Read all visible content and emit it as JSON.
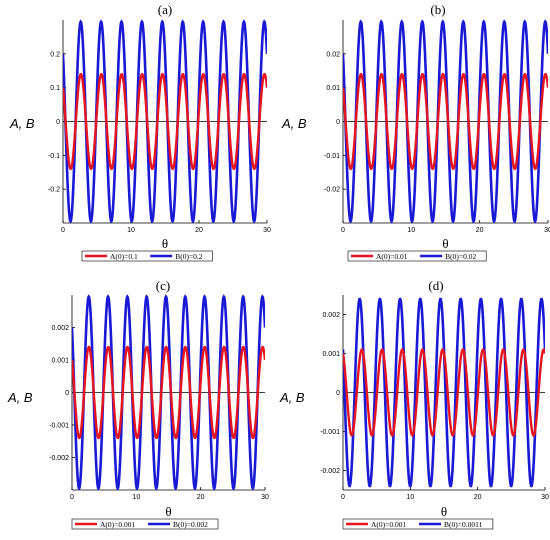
{
  "chart_data": [
    {
      "type": "line",
      "title": "(a)",
      "xlabel": "θ",
      "ylabel": "A, B",
      "xlim": [
        0,
        30
      ],
      "ylim": [
        -0.3,
        0.3
      ],
      "xticks": [
        "0",
        "10",
        "20",
        "30"
      ],
      "yticks": [
        {
          "v": 0.2,
          "t": "0.2"
        },
        {
          "v": 0.1,
          "t": "0.1"
        },
        {
          "v": 0,
          "t": "0"
        },
        {
          "v": -0.1,
          "t": "-0.1"
        },
        {
          "v": -0.2,
          "t": "-0.2"
        }
      ],
      "series": [
        {
          "name": "A(0)=0.1",
          "color": "#e8141e",
          "amplitude": 0.14,
          "initial": 0.1,
          "oscillations": 10
        },
        {
          "name": "B(0)=0.2",
          "color": "#1a1ad6",
          "amplitude": 0.295,
          "initial": 0.2,
          "oscillations": 10
        }
      ]
    },
    {
      "type": "line",
      "title": "(b)",
      "xlabel": "θ",
      "ylabel": "A, B",
      "xlim": [
        0,
        30
      ],
      "ylim": [
        -0.03,
        0.03
      ],
      "xticks": [
        "0",
        "10",
        "20",
        "30"
      ],
      "yticks": [
        {
          "v": 0.02,
          "t": "0.02"
        },
        {
          "v": 0.01,
          "t": "0.01"
        },
        {
          "v": 0,
          "t": "0"
        },
        {
          "v": -0.01,
          "t": "-0.01"
        },
        {
          "v": -0.02,
          "t": "-0.02"
        }
      ],
      "series": [
        {
          "name": "A(0)=0.01",
          "color": "#e8141e",
          "amplitude": 0.014,
          "initial": 0.01,
          "oscillations": 10
        },
        {
          "name": "B(0)=0.02",
          "color": "#1a1ad6",
          "amplitude": 0.0295,
          "initial": 0.02,
          "oscillations": 10
        }
      ]
    },
    {
      "type": "line",
      "title": "(c)",
      "xlabel": "θ",
      "ylabel": "A, B",
      "xlim": [
        0,
        30
      ],
      "ylim": [
        -0.003,
        0.003
      ],
      "xticks": [
        "0",
        "10",
        "20",
        "30"
      ],
      "yticks": [
        {
          "v": 0.002,
          "t": "0.002"
        },
        {
          "v": 0.001,
          "t": "0.001"
        },
        {
          "v": 0,
          "t": "0"
        },
        {
          "v": -0.001,
          "t": "-0.001"
        },
        {
          "v": -0.002,
          "t": "-0.002"
        }
      ],
      "series": [
        {
          "name": "A(0)=0.001",
          "color": "#e8141e",
          "amplitude": 0.0014,
          "initial": 0.001,
          "oscillations": 10
        },
        {
          "name": "B(0)=0.002",
          "color": "#1a1ad6",
          "amplitude": 0.00295,
          "initial": 0.002,
          "oscillations": 10
        }
      ]
    },
    {
      "type": "line",
      "title": "(d)",
      "xlabel": "θ",
      "ylabel": "A, B",
      "xlim": [
        0,
        30
      ],
      "ylim": [
        -0.0025,
        0.0025
      ],
      "xticks": [
        "0",
        "10",
        "20",
        "30"
      ],
      "yticks": [
        {
          "v": 0.002,
          "t": "0.002"
        },
        {
          "v": 0.001,
          "t": "0.001"
        },
        {
          "v": 0,
          "t": "0"
        },
        {
          "v": -0.001,
          "t": "-0.001"
        },
        {
          "v": -0.002,
          "t": "-0.002"
        }
      ],
      "series": [
        {
          "name": "A(0)=0.001",
          "color": "#e8141e",
          "amplitude": 0.0011,
          "initial": 0.001,
          "oscillations": 10
        },
        {
          "name": "B(0)=0.0011",
          "color": "#1a1ad6",
          "amplitude": 0.0024,
          "initial": 0.0011,
          "oscillations": 10
        }
      ]
    }
  ]
}
